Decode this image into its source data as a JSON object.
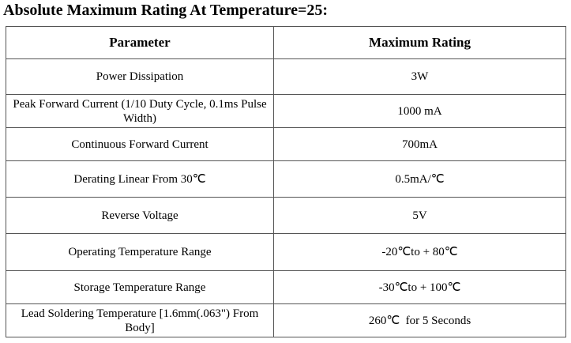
{
  "header": {
    "title": "Absolute Maximum Rating At Temperature=25:"
  },
  "table": {
    "columns": [
      "Parameter",
      "Maximum Rating"
    ],
    "rows": [
      [
        "Power Dissipation",
        "3W"
      ],
      [
        "Peak Forward Current (1/10 Duty Cycle, 0.1ms Pulse Width)",
        "1000 mA"
      ],
      [
        "Continuous Forward Current",
        "700mA"
      ],
      [
        "Derating Linear From 30℃",
        "0.5mA/℃"
      ],
      [
        "Reverse Voltage",
        "5V"
      ],
      [
        "Operating Temperature Range",
        "-20℃to + 80℃"
      ],
      [
        "Storage Temperature Range",
        "-30℃to + 100℃"
      ],
      [
        "Lead Soldering Temperature [1.6mm(.063\") From Body]",
        "260℃  for 5 Seconds"
      ]
    ]
  }
}
